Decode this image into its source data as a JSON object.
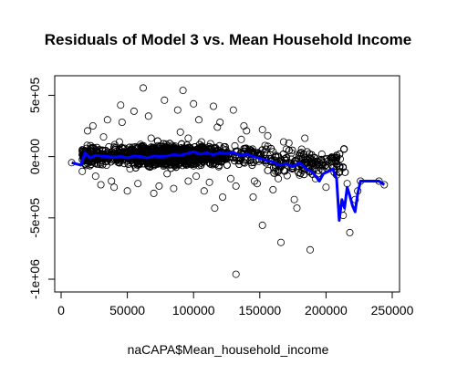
{
  "chart_data": {
    "type": "scatter",
    "title": "Residuals of Model 3 vs. Mean Household Income",
    "xlabel": "naCAPA$Mean_household_income",
    "ylabel": "",
    "xlim": [
      0,
      250000
    ],
    "ylim": [
      -1000000,
      600000
    ],
    "grid": false,
    "legend": "none",
    "x_ticks": [
      0,
      50000,
      100000,
      150000,
      200000,
      250000
    ],
    "x_tick_labels": [
      "0",
      "50000",
      "100000",
      "150000",
      "200000",
      "250000"
    ],
    "y_ticks": [
      500000,
      0,
      -500000,
      -1000000
    ],
    "y_tick_labels": [
      "5e+05",
      "0e+00",
      "-5e+05",
      "-1e+06"
    ],
    "series": [
      {
        "kind": "points",
        "color": "#000000",
        "x": [
          8000,
          16000,
          20000,
          24000,
          30000,
          35000,
          40000,
          45000,
          50000,
          55000,
          62000,
          70000,
          78000,
          85000,
          92000,
          100000,
          108000,
          115000,
          122000,
          130000,
          138000,
          145000,
          152000,
          160000,
          168000,
          176000,
          184000,
          192000,
          200000,
          205000,
          210000,
          213000,
          218000,
          222000,
          226000,
          240000,
          244000,
          26000,
          32000,
          38000,
          46000,
          58000,
          66000,
          74000,
          88000,
          96000,
          104000,
          112000,
          120000,
          132000,
          140000,
          148000,
          156000,
          164000,
          172000,
          180000,
          188000,
          196000,
          132000,
          188000,
          166000,
          212000,
          178000,
          116000,
          152000,
          96000,
          44000,
          60000,
          84000,
          106000,
          124000,
          142000,
          160000,
          174000,
          186000,
          198000,
          22000,
          28000,
          36000,
          52000,
          68000,
          80000,
          90000,
          102000,
          118000,
          128000,
          136000,
          146000,
          154000,
          162000,
          170000,
          182000,
          194000,
          208000,
          216000,
          224000
        ],
        "y": [
          -50000,
          -120000,
          210000,
          250000,
          -230000,
          300000,
          -250000,
          420000,
          -280000,
          370000,
          560000,
          -300000,
          460000,
          -260000,
          540000,
          430000,
          -280000,
          410000,
          -330000,
          380000,
          250000,
          -330000,
          220000,
          -270000,
          120000,
          -350000,
          150000,
          -180000,
          -250000,
          -90000,
          -130000,
          -480000,
          -620000,
          -350000,
          -200000,
          -200000,
          -230000,
          -160000,
          160000,
          -200000,
          280000,
          -220000,
          330000,
          -240000,
          380000,
          -200000,
          300000,
          -210000,
          280000,
          -240000,
          210000,
          -220000,
          170000,
          -180000,
          110000,
          -150000,
          -10000,
          -60000,
          -960000,
          -760000,
          -700000,
          -430000,
          -420000,
          -420000,
          -560000,
          150000,
          120000,
          100000,
          90000,
          120000,
          80000,
          60000,
          40000,
          30000,
          -20000,
          -50000,
          40000,
          -60000,
          80000,
          -100000,
          150000,
          -140000,
          200000,
          -160000,
          240000,
          -180000,
          140000,
          -200000,
          90000,
          -120000,
          60000,
          -90000,
          -140000,
          -150000,
          -220000,
          -280000
        ]
      },
      {
        "kind": "line",
        "color": "#0000ff",
        "x": [
          8000,
          15000,
          18000,
          22000,
          26000,
          30000,
          35000,
          40000,
          45000,
          50000,
          55000,
          60000,
          65000,
          70000,
          75000,
          80000,
          85000,
          90000,
          95000,
          100000,
          105000,
          110000,
          115000,
          120000,
          125000,
          130000,
          135000,
          140000,
          145000,
          150000,
          155000,
          160000,
          165000,
          170000,
          175000,
          180000,
          185000,
          190000,
          195000,
          198000,
          202000,
          205000,
          208000,
          210000,
          212000,
          214000,
          216000,
          218000,
          220000,
          222000,
          224000,
          226000,
          240000,
          244000
        ],
        "y": [
          -50000,
          -70000,
          30000,
          -10000,
          10000,
          5000,
          0,
          -5000,
          0,
          -10000,
          5000,
          0,
          -10000,
          5000,
          0,
          5000,
          15000,
          10000,
          25000,
          40000,
          20000,
          30000,
          15000,
          30000,
          25000,
          35000,
          10000,
          20000,
          0,
          -15000,
          -30000,
          -45000,
          -70000,
          -60000,
          -80000,
          -50000,
          -100000,
          -130000,
          -200000,
          -140000,
          -120000,
          -100000,
          -180000,
          -520000,
          -350000,
          -420000,
          -250000,
          -320000,
          -400000,
          -450000,
          -300000,
          -200000,
          -200000,
          -230000
        ]
      }
    ]
  }
}
